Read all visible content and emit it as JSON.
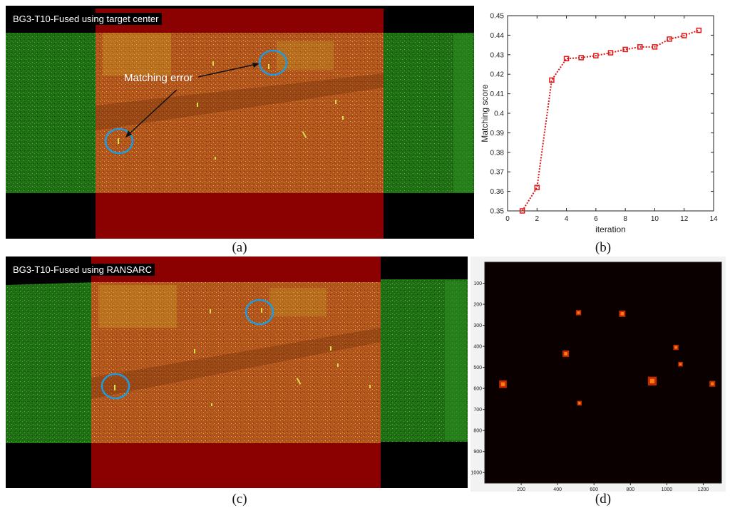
{
  "panel_a": {
    "title": "BG3-T10-Fused using target center",
    "annotation": "Matching error",
    "label": "(a)"
  },
  "panel_b": {
    "label": "(b)"
  },
  "panel_c": {
    "title": "BG3-T10-Fused using RANSARC",
    "label": "(c)"
  },
  "panel_d": {
    "label": "(d)"
  },
  "colors": {
    "red_band": "#8b0000",
    "green_field": "#1f7a14",
    "overlap": "#b0501c",
    "circle": "#1e9be0",
    "line": "#e01818",
    "hot_spot": "#ff7a10"
  },
  "chart_data": [
    {
      "type": "line",
      "xlabel": "iteration",
      "ylabel": "Matching score",
      "xlim": [
        0,
        14
      ],
      "ylim": [
        0.35,
        0.45
      ],
      "x_ticks": [
        0,
        2,
        4,
        6,
        8,
        10,
        12,
        14
      ],
      "y_ticks": [
        0.35,
        0.36,
        0.37,
        0.38,
        0.39,
        0.4,
        0.41,
        0.42,
        0.43,
        0.44,
        0.45
      ],
      "x_tick_labels": [
        "0",
        "2",
        "4",
        "6",
        "8",
        "10",
        "12",
        "14"
      ],
      "y_tick_labels": [
        "0.35",
        "0.36",
        "0.37",
        "0.38",
        "0.39",
        "0.4",
        "0.41",
        "0.42",
        "0.43",
        "0.44",
        "0.45"
      ],
      "x": [
        1,
        2,
        3,
        4,
        5,
        6,
        7,
        8,
        9,
        10,
        11,
        12,
        13
      ],
      "y": [
        0.35,
        0.362,
        0.417,
        0.428,
        0.4285,
        0.4295,
        0.431,
        0.4327,
        0.434,
        0.434,
        0.438,
        0.4398,
        0.4425
      ],
      "line_style": "dotted",
      "marker": "square",
      "grid": false
    },
    {
      "type": "heatmap",
      "xlim": [
        0,
        1300
      ],
      "ylim": [
        0,
        1050
      ],
      "x_ticks": [
        200,
        400,
        600,
        800,
        1000,
        1200
      ],
      "y_ticks": [
        100,
        200,
        300,
        400,
        500,
        600,
        700,
        800,
        900,
        1000
      ],
      "x_tick_labels": [
        "200",
        "400",
        "600",
        "800",
        "1000",
        "1200"
      ],
      "y_tick_labels": [
        "100",
        "200",
        "300",
        "400",
        "500",
        "600",
        "700",
        "800",
        "900",
        "1000"
      ],
      "y_direction": "top-to-bottom",
      "background": "black",
      "hot_spots": [
        {
          "x": 515,
          "y": 240,
          "size": 18
        },
        {
          "x": 755,
          "y": 245,
          "size": 22
        },
        {
          "x": 1050,
          "y": 405,
          "size": 18
        },
        {
          "x": 445,
          "y": 435,
          "size": 22
        },
        {
          "x": 1075,
          "y": 485,
          "size": 16
        },
        {
          "x": 920,
          "y": 565,
          "size": 30
        },
        {
          "x": 100,
          "y": 580,
          "size": 26
        },
        {
          "x": 1250,
          "y": 578,
          "size": 20
        },
        {
          "x": 520,
          "y": 670,
          "size": 16
        }
      ]
    }
  ]
}
